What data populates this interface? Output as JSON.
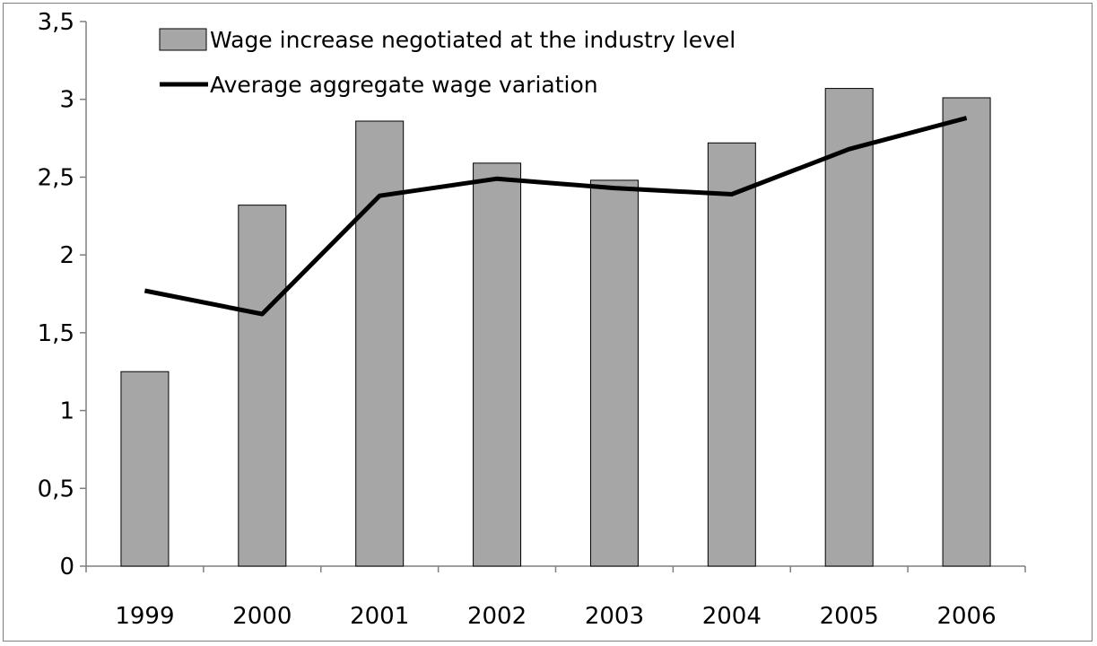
{
  "chart_data": {
    "type": "bar",
    "categories": [
      "1999",
      "2000",
      "2001",
      "2002",
      "2003",
      "2004",
      "2005",
      "2006"
    ],
    "series": [
      {
        "name": "Wage increase negotiated at the industry level",
        "type": "bar",
        "values": [
          1.25,
          2.32,
          2.86,
          2.59,
          2.48,
          2.72,
          3.07,
          3.01
        ],
        "color": "#a6a6a6"
      },
      {
        "name": "Average aggregate wage variation",
        "type": "line",
        "values": [
          1.77,
          1.62,
          2.38,
          2.49,
          2.43,
          2.39,
          2.68,
          2.88
        ],
        "color": "#000000"
      }
    ],
    "ylim": [
      0,
      3.5
    ],
    "yticks": [
      0,
      0.5,
      1,
      1.5,
      2,
      2.5,
      3,
      3.5
    ],
    "ytick_labels": [
      "0",
      "0,5",
      "1",
      "1,5",
      "2",
      "2,5",
      "3",
      "3,5"
    ],
    "grid": false,
    "legend_position": "top-left",
    "title": "",
    "xlabel": "",
    "ylabel": ""
  }
}
